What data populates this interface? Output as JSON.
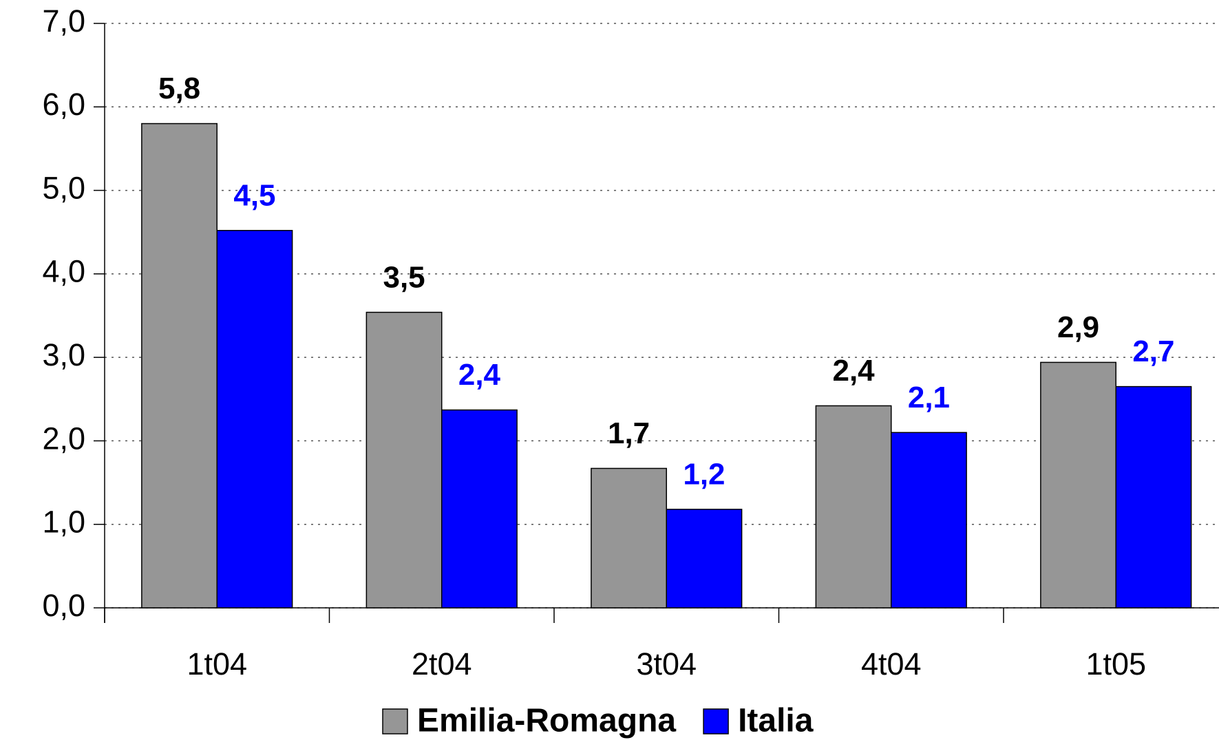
{
  "chart_data": {
    "type": "bar",
    "categories": [
      "1t04",
      "2t04",
      "3t04",
      "4t04",
      "1t05"
    ],
    "series": [
      {
        "name": "Emilia-Romagna",
        "color": "#969696",
        "values": [
          5.8,
          3.54,
          1.67,
          2.42,
          2.94
        ],
        "value_labels": [
          "5,8",
          "3,5",
          "1,7",
          "2,4",
          "2,9"
        ],
        "label_color": "#000000"
      },
      {
        "name": "Italia",
        "color": "#0000ff",
        "values": [
          4.52,
          2.37,
          1.18,
          2.1,
          2.65
        ],
        "value_labels": [
          "4,5",
          "2,4",
          "1,2",
          "2,1",
          "2,7"
        ],
        "label_color": "#0000ff"
      }
    ],
    "ylim": [
      0,
      7
    ],
    "yticks": [
      {
        "value": 0,
        "label": "0,0"
      },
      {
        "value": 1,
        "label": "1,0"
      },
      {
        "value": 2,
        "label": "2,0"
      },
      {
        "value": 3,
        "label": "3,0"
      },
      {
        "value": 4,
        "label": "4,0"
      },
      {
        "value": 5,
        "label": "5,0"
      },
      {
        "value": 6,
        "label": "6,0"
      },
      {
        "value": 7,
        "label": "7,0"
      }
    ],
    "grid": true,
    "legend": "bottom"
  }
}
